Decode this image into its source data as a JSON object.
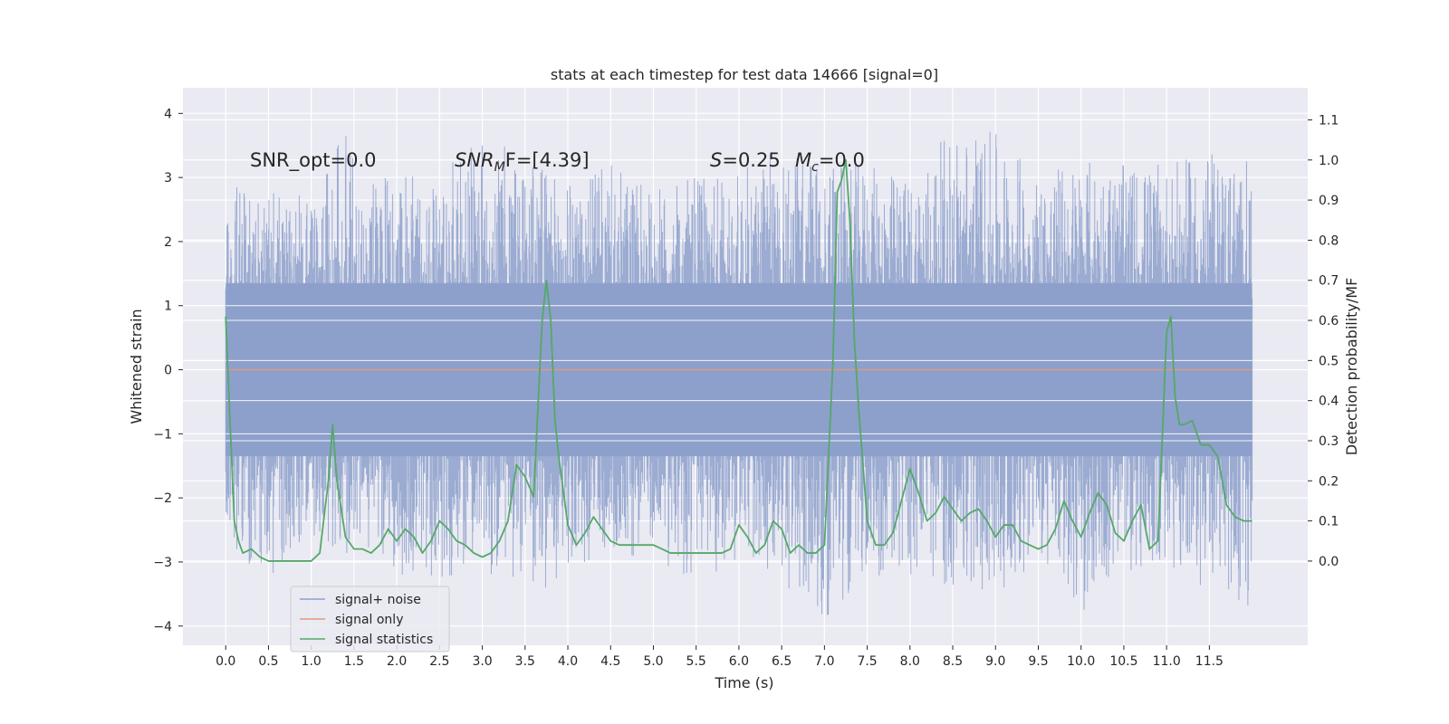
{
  "chart_data": {
    "type": "line",
    "title": "stats at each timestep for test data 14666 [signal=0]",
    "xlabel": "Time (s)",
    "ylabel": "Whitened strain",
    "y2label": "Detection probability/MF",
    "xlim": [
      -0.5,
      12.65
    ],
    "ylim": [
      -4.3,
      4.4
    ],
    "y2lim": [
      -0.21,
      1.18
    ],
    "xticks": [
      0.0,
      0.5,
      1.0,
      1.5,
      2.0,
      2.5,
      3.0,
      3.5,
      4.0,
      4.5,
      5.0,
      5.5,
      6.0,
      6.5,
      7.0,
      7.5,
      8.0,
      8.5,
      9.0,
      9.5,
      10.0,
      10.5,
      11.0,
      11.5
    ],
    "xtick_labels": [
      "0.0",
      "0.5",
      "1.0",
      "1.5",
      "2.0",
      "2.5",
      "3.0",
      "3.5",
      "4.0",
      "4.5",
      "5.0",
      "5.5",
      "6.0",
      "6.5",
      "7.0",
      "7.5",
      "8.0",
      "8.5",
      "9.0",
      "9.5",
      "10.0",
      "10.5",
      "11.0",
      "11.5"
    ],
    "yticks": [
      -4,
      -3,
      -2,
      -1,
      0,
      1,
      2,
      3,
      4
    ],
    "ytick_labels": [
      "−4",
      "−3",
      "−2",
      "−1",
      "0",
      "1",
      "2",
      "3",
      "4"
    ],
    "y2ticks": [
      0.0,
      0.1,
      0.2,
      0.3,
      0.4,
      0.5,
      0.6,
      0.7,
      0.8,
      0.9,
      1.0,
      1.1
    ],
    "y2tick_labels": [
      "0.0",
      "0.1",
      "0.2",
      "0.3",
      "0.4",
      "0.5",
      "0.6",
      "0.7",
      "0.8",
      "0.9",
      "1.0",
      "1.1"
    ],
    "grid": true,
    "legend_position": "lower-left",
    "annotations": {
      "snr_opt": "SNR_opt=0.0",
      "snr_mf_main": "SNR",
      "snr_mf_sub": "M",
      "snr_mf_rest": "F=[4.39]",
      "s_main": "S",
      "s_rest": "=0.25",
      "mc_main": "M",
      "mc_sub": "c",
      "mc_rest": "=0.0"
    },
    "colors": {
      "noise": "#8da0cb",
      "signal": "#e09a7f",
      "stats": "#55a868",
      "background": "#eaeaf2",
      "grid": "#ffffff"
    },
    "series": [
      {
        "name": "signal+ noise",
        "type": "noise-band",
        "t_range": [
          0.0,
          12.0
        ],
        "sample_rate": 200,
        "core_amplitude": 1.35,
        "envelope_t": [
          0.0,
          0.5,
          1.0,
          1.45,
          1.5,
          2.0,
          2.5,
          3.0,
          3.5,
          4.0,
          4.5,
          5.0,
          5.5,
          6.0,
          6.5,
          7.0,
          7.5,
          8.0,
          8.5,
          9.0,
          9.5,
          10.0,
          10.5,
          11.0,
          11.5,
          12.0
        ],
        "envelope_upper": [
          2.9,
          2.8,
          2.7,
          4.1,
          3.0,
          3.0,
          3.1,
          3.6,
          3.4,
          2.9,
          3.2,
          2.8,
          3.0,
          3.1,
          3.5,
          3.3,
          3.2,
          3.0,
          3.8,
          3.7,
          3.1,
          3.3,
          3.2,
          3.2,
          3.4,
          3.3
        ],
        "envelope_lower": [
          -2.7,
          -3.3,
          -2.6,
          -3.0,
          -2.6,
          -3.2,
          -3.3,
          -3.1,
          -3.6,
          -3.2,
          -2.8,
          -3.0,
          -3.3,
          -3.0,
          -3.4,
          -3.9,
          -3.2,
          -3.3,
          -3.4,
          -3.5,
          -3.0,
          -3.8,
          -3.2,
          -3.1,
          -3.5,
          -3.8
        ]
      },
      {
        "name": "signal only",
        "t": [
          0.0,
          12.0
        ],
        "values": [
          0.0,
          0.0
        ]
      },
      {
        "name": "signal statistics",
        "axis": "right",
        "t": [
          0.0,
          0.05,
          0.1,
          0.15,
          0.2,
          0.3,
          0.4,
          0.5,
          0.6,
          0.8,
          1.0,
          1.1,
          1.2,
          1.25,
          1.3,
          1.4,
          1.5,
          1.6,
          1.7,
          1.8,
          1.9,
          2.0,
          2.1,
          2.2,
          2.3,
          2.4,
          2.5,
          2.6,
          2.7,
          2.8,
          2.9,
          3.0,
          3.1,
          3.2,
          3.3,
          3.4,
          3.5,
          3.6,
          3.7,
          3.75,
          3.8,
          3.85,
          3.9,
          4.0,
          4.1,
          4.2,
          4.3,
          4.4,
          4.5,
          4.6,
          4.8,
          5.0,
          5.2,
          5.4,
          5.6,
          5.8,
          5.9,
          6.0,
          6.1,
          6.2,
          6.3,
          6.4,
          6.5,
          6.6,
          6.7,
          6.8,
          6.9,
          7.0,
          7.1,
          7.15,
          7.2,
          7.25,
          7.3,
          7.35,
          7.4,
          7.5,
          7.6,
          7.7,
          7.8,
          7.9,
          8.0,
          8.1,
          8.2,
          8.3,
          8.4,
          8.5,
          8.6,
          8.7,
          8.8,
          8.9,
          9.0,
          9.1,
          9.2,
          9.3,
          9.5,
          9.6,
          9.7,
          9.8,
          9.9,
          10.0,
          10.1,
          10.2,
          10.3,
          10.4,
          10.5,
          10.6,
          10.7,
          10.8,
          10.9,
          11.0,
          11.05,
          11.1,
          11.15,
          11.2,
          11.3,
          11.4,
          11.5,
          11.6,
          11.7,
          11.8,
          11.9,
          12.0
        ],
        "values": [
          0.61,
          0.35,
          0.1,
          0.05,
          0.02,
          0.03,
          0.01,
          0.0,
          0.0,
          0.0,
          0.0,
          0.02,
          0.2,
          0.34,
          0.2,
          0.06,
          0.03,
          0.03,
          0.02,
          0.04,
          0.08,
          0.05,
          0.08,
          0.06,
          0.02,
          0.05,
          0.1,
          0.08,
          0.05,
          0.04,
          0.02,
          0.01,
          0.02,
          0.05,
          0.1,
          0.24,
          0.21,
          0.16,
          0.6,
          0.7,
          0.6,
          0.35,
          0.25,
          0.09,
          0.04,
          0.07,
          0.11,
          0.08,
          0.05,
          0.04,
          0.04,
          0.04,
          0.02,
          0.02,
          0.02,
          0.02,
          0.03,
          0.09,
          0.06,
          0.02,
          0.04,
          0.1,
          0.08,
          0.02,
          0.04,
          0.02,
          0.02,
          0.04,
          0.5,
          0.92,
          0.95,
          1.0,
          0.84,
          0.55,
          0.38,
          0.1,
          0.04,
          0.04,
          0.07,
          0.15,
          0.23,
          0.17,
          0.1,
          0.12,
          0.16,
          0.13,
          0.1,
          0.12,
          0.13,
          0.1,
          0.06,
          0.09,
          0.09,
          0.05,
          0.03,
          0.04,
          0.08,
          0.15,
          0.1,
          0.06,
          0.12,
          0.17,
          0.14,
          0.07,
          0.05,
          0.1,
          0.14,
          0.03,
          0.05,
          0.57,
          0.61,
          0.41,
          0.34,
          0.34,
          0.35,
          0.29,
          0.29,
          0.26,
          0.14,
          0.11,
          0.1,
          0.1
        ]
      }
    ]
  }
}
